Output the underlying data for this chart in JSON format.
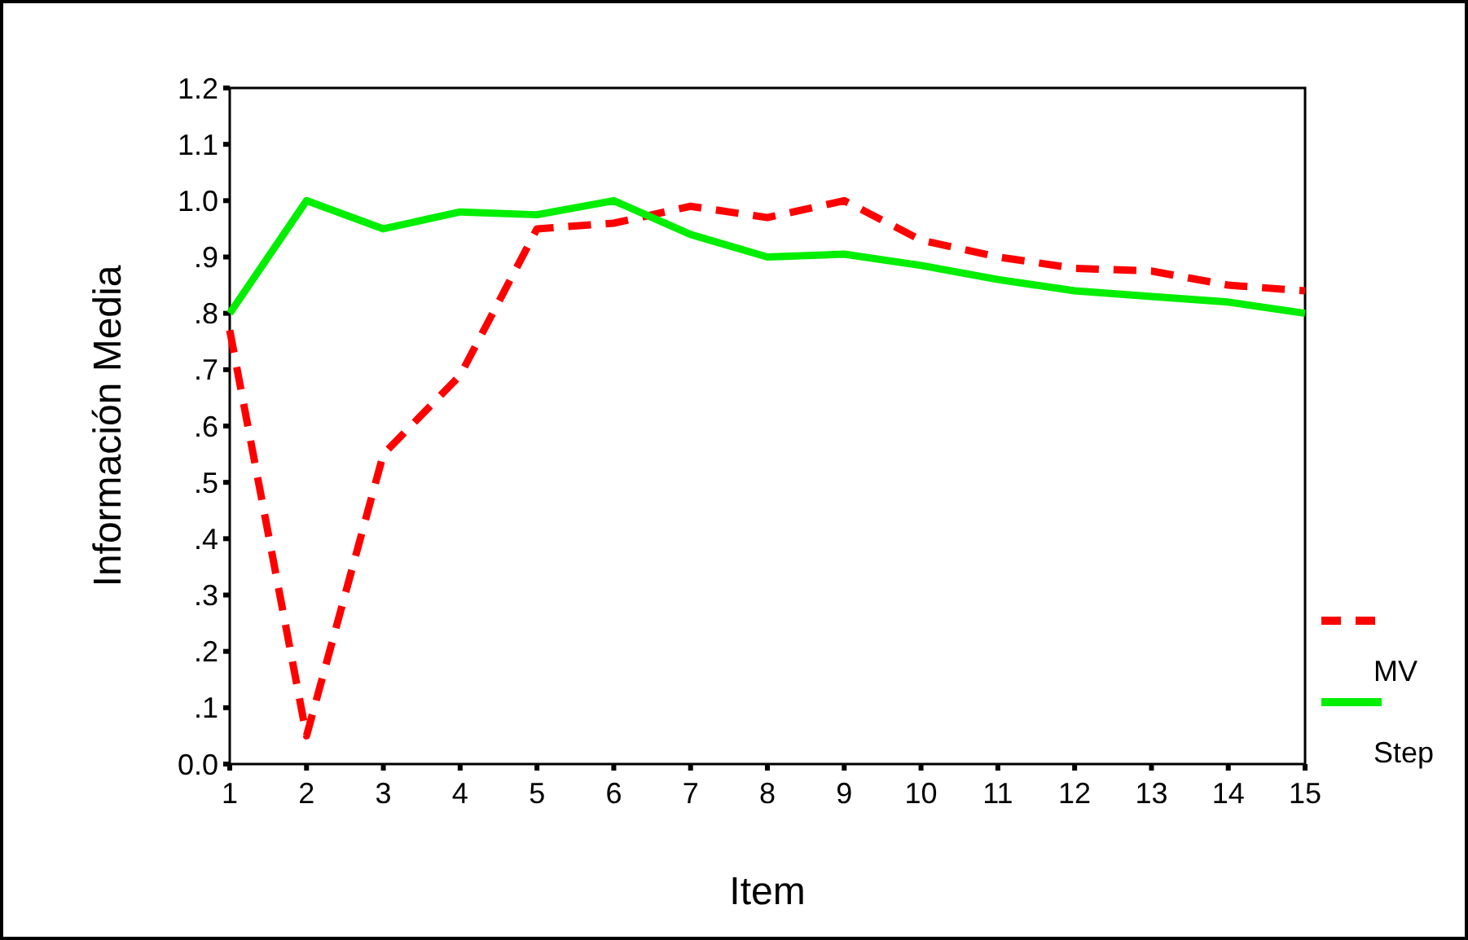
{
  "chart_data": {
    "type": "line",
    "xlabel": "Item",
    "ylabel": "Información Media",
    "x": [
      1,
      2,
      3,
      4,
      5,
      6,
      7,
      8,
      9,
      10,
      11,
      12,
      13,
      14,
      15
    ],
    "series": [
      {
        "name": "MV",
        "color": "#ff0000",
        "line_style": "dashed",
        "values": [
          0.77,
          0.05,
          0.55,
          0.69,
          0.95,
          0.96,
          0.99,
          0.97,
          1.0,
          0.93,
          0.9,
          0.88,
          0.875,
          0.85,
          0.84
        ]
      },
      {
        "name": "Step",
        "color": "#00ee00",
        "line_style": "solid",
        "values": [
          0.8,
          1.0,
          0.95,
          0.98,
          0.975,
          1.0,
          0.94,
          0.9,
          0.905,
          0.885,
          0.86,
          0.84,
          0.83,
          0.82,
          0.8
        ]
      }
    ],
    "xlim": [
      1,
      15
    ],
    "xticks": [
      1,
      2,
      3,
      4,
      5,
      6,
      7,
      8,
      9,
      10,
      11,
      12,
      13,
      14,
      15
    ],
    "ylim": [
      0,
      1.2
    ],
    "yticks": [
      {
        "value": 0,
        "label": "0.0"
      },
      {
        "value": 0.1,
        "label": ".1"
      },
      {
        "value": 0.2,
        "label": ".2"
      },
      {
        "value": 0.3,
        "label": ".3"
      },
      {
        "value": 0.4,
        "label": ".4"
      },
      {
        "value": 0.5,
        "label": ".5"
      },
      {
        "value": 0.6,
        "label": ".6"
      },
      {
        "value": 0.7,
        "label": ".7"
      },
      {
        "value": 0.8,
        "label": ".8"
      },
      {
        "value": 0.9,
        "label": ".9"
      },
      {
        "value": 1.0,
        "label": "1.0"
      },
      {
        "value": 1.1,
        "label": "1.1"
      },
      {
        "value": 1.2,
        "label": "1.2"
      }
    ],
    "grid": false,
    "legend": "right",
    "marker": "none"
  }
}
